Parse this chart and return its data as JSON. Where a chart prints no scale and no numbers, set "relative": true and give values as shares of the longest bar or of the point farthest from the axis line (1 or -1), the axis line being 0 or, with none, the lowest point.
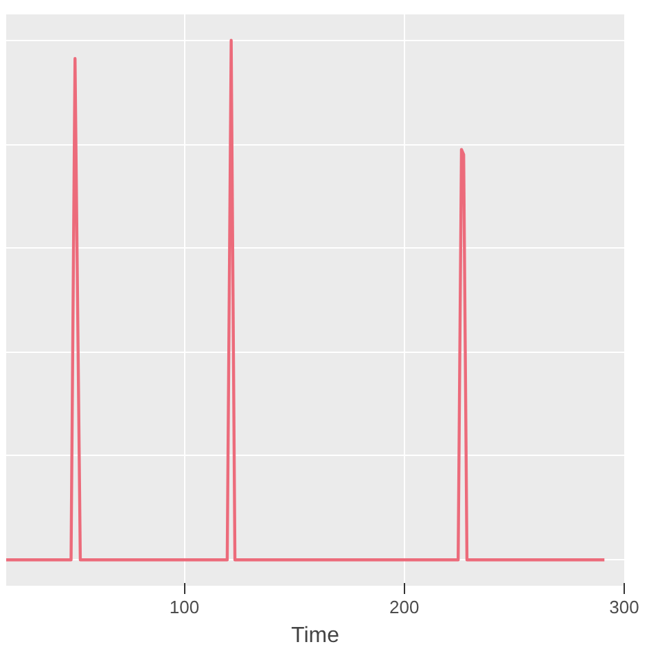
{
  "chart_data": {
    "type": "line",
    "xlabel": "Time",
    "relative": true,
    "x": [
      19,
      48.5,
      50.3,
      52.7,
      119.5,
      121.3,
      123,
      224.5,
      226,
      227,
      228.5,
      291
    ],
    "series": [
      {
        "color": "#ec6b7b",
        "values": [
          0,
          0,
          0.965,
          0,
          0,
          1,
          0,
          0,
          0.79,
          0.78,
          0,
          0
        ]
      }
    ],
    "xlim": [
      19,
      300
    ],
    "xticks": [
      100,
      200,
      300
    ],
    "grid": true,
    "line_style": "solid",
    "marker": "none"
  }
}
